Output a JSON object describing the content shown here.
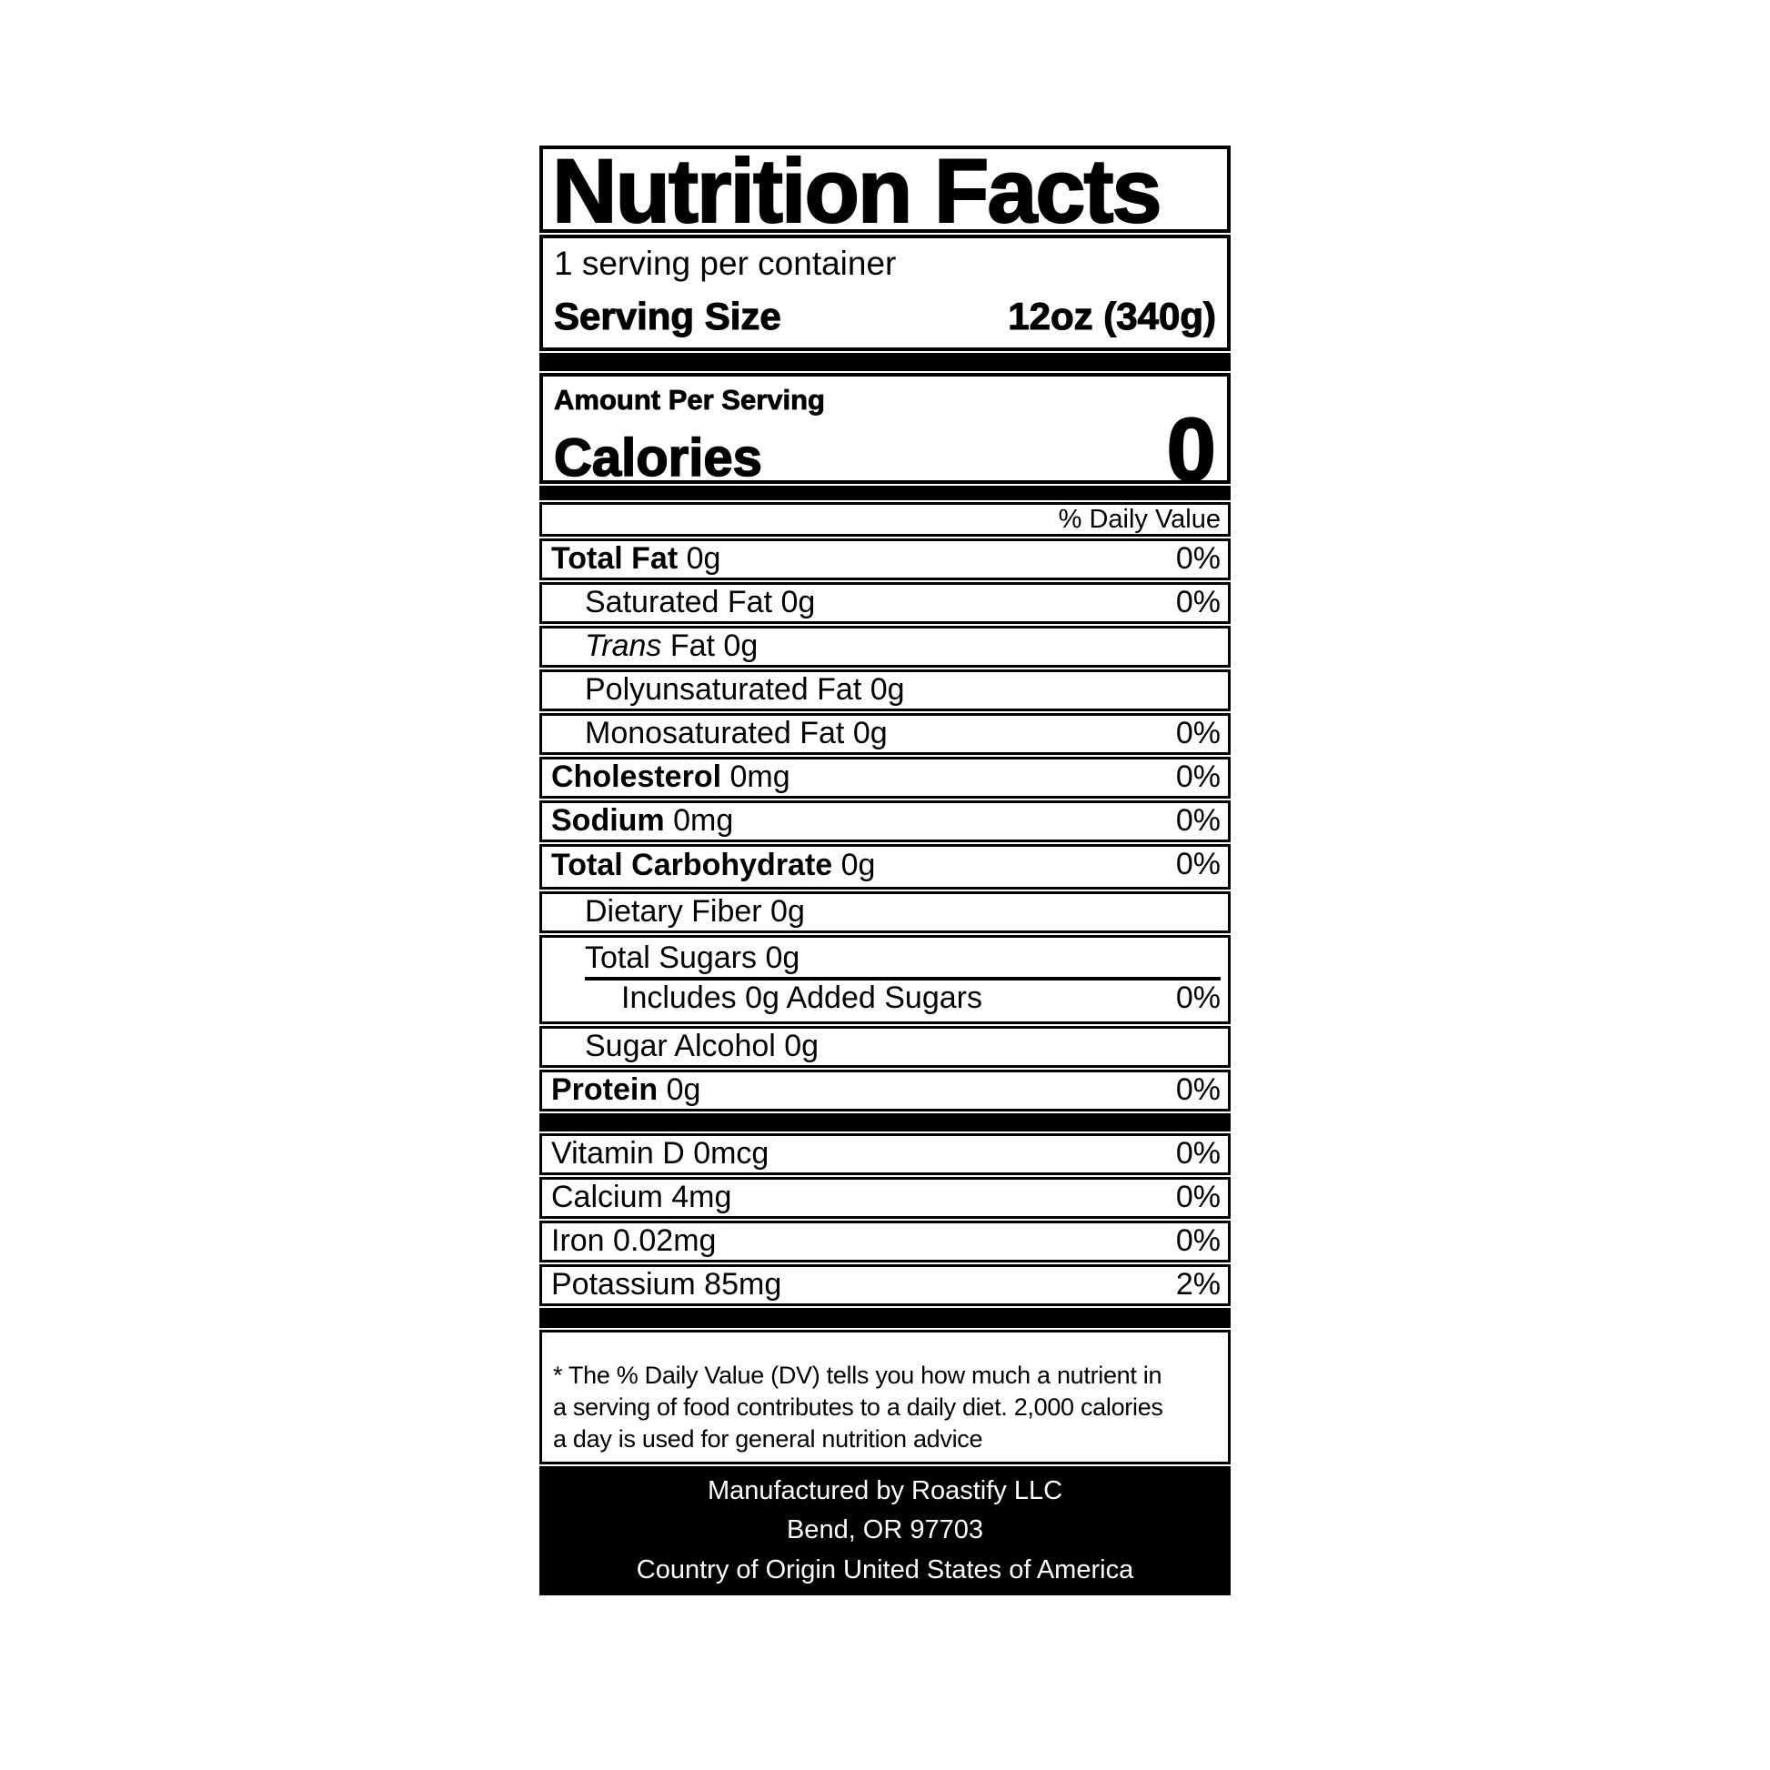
{
  "colors": {
    "ink": "#000000",
    "paper": "#ffffff"
  },
  "label": {
    "title": "Nutrition Facts",
    "servings_per_container": "1 serving per container",
    "serving_size": {
      "label": "Serving Size",
      "value": "12oz (340g)"
    },
    "amount_per_serving": "Amount Per Serving",
    "calories": {
      "label": "Calories",
      "value": "0"
    },
    "daily_value_header": "% Daily Value",
    "nutrients": [
      {
        "type": "simple",
        "bold": "Total Fat",
        "rest": "0g",
        "dv": "0%",
        "indent": 0
      },
      {
        "type": "simple",
        "rest": "Saturated Fat 0g",
        "dv": "0%",
        "indent": 1
      },
      {
        "type": "simple",
        "italic": "Trans",
        "rest": "Fat 0g",
        "dv": "",
        "indent": 1
      },
      {
        "type": "simple",
        "rest": "Polyunsaturated Fat 0g",
        "dv": "",
        "indent": 1
      },
      {
        "type": "simple",
        "rest": "Monosaturated Fat 0g",
        "dv": "0%",
        "indent": 1
      },
      {
        "type": "simple",
        "bold": "Cholesterol",
        "rest": "0mg",
        "dv": "0%",
        "indent": 0
      },
      {
        "type": "simple",
        "bold": "Sodium",
        "rest": "0mg",
        "dv": "0%",
        "indent": 0
      },
      {
        "type": "simple",
        "bold": "Total Carbohydrate",
        "rest": "0g",
        "dv": "0%",
        "indent": 0,
        "dv_raised": true
      },
      {
        "type": "simple",
        "rest": "Dietary Fiber 0g",
        "dv": "",
        "indent": 1
      },
      {
        "type": "group",
        "line1": "Total Sugars 0g",
        "line2": "Includes 0g Added Sugars",
        "line2_dv": "0%"
      },
      {
        "type": "simple",
        "rest": "Sugar Alcohol 0g",
        "dv": "",
        "indent": 1
      },
      {
        "type": "simple",
        "bold": "Protein",
        "rest": "0g",
        "dv": "0%",
        "indent": 0
      }
    ],
    "vitamins": [
      {
        "label": "Vitamin D 0mcg",
        "dv": "0%"
      },
      {
        "label": "Calcium 4mg",
        "dv": "0%"
      },
      {
        "label": "Iron 0.02mg",
        "dv": "0%"
      },
      {
        "label": "Potassium 85mg",
        "dv": "2%"
      }
    ],
    "footnote_lines": [
      "* The % Daily Value (DV) tells you how much a nutrient in",
      "a serving of food contributes to a daily diet. 2,000 calories",
      "a day is used for general nutrition advice"
    ],
    "footer_lines": [
      "Manufactured by Roastify LLC",
      "Bend, OR 97703",
      "Country of Origin United States of America"
    ]
  }
}
